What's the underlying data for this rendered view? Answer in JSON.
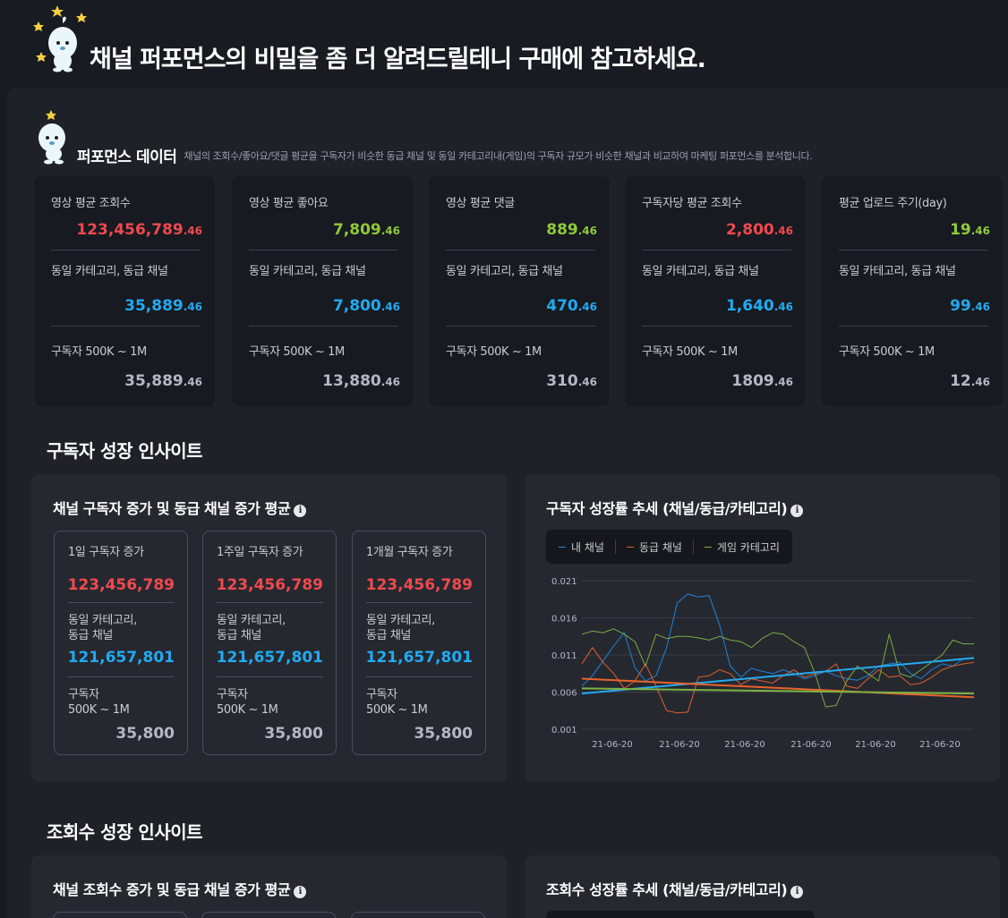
{
  "header": {
    "title": "채널 퍼포먼스의 비밀을 좀 더 알려드릴테니 구매에 참고하세요."
  },
  "performance": {
    "title": "퍼포먼스 데이터",
    "description": "채널의 조회수/좋아요/댓글 평균을 구독자가 비슷한 동급 채널 및 동일 카테고리내(게임)의 구독자 규모가 비슷한 채널과 비교하여 마케팅 퍼포먼스를 분석합니다.",
    "cards": [
      {
        "label": "영상 평균 조회수",
        "value": "123,456,789",
        "dec": ".46",
        "color": "#f0494f",
        "peer_label": "동일 카테고리, 동급 채널",
        "peer_value": "35,889",
        "peer_dec": ".46",
        "sub_label": "구독자 500K ~ 1M",
        "sub_value": "35,889",
        "sub_dec": ".46"
      },
      {
        "label": "영상 평균 좋아요",
        "value": "7,809",
        "dec": ".46",
        "color": "#8fc93a",
        "peer_label": "동일 카테고리, 동급 채널",
        "peer_value": "7,800",
        "peer_dec": ".46",
        "sub_label": "구독자 500K ~ 1M",
        "sub_value": "13,880",
        "sub_dec": ".46"
      },
      {
        "label": "영상 평균 댓글",
        "value": "889",
        "dec": ".46",
        "color": "#8fc93a",
        "peer_label": "동일 카테고리, 동급 채널",
        "peer_value": "470",
        "peer_dec": ".46",
        "sub_label": "구독자 500K ~ 1M",
        "sub_value": "310",
        "sub_dec": ".46"
      },
      {
        "label": "구독자당 평균 조회수",
        "value": "2,800",
        "dec": ".46",
        "color": "#f0494f",
        "peer_label": "동일 카테고리, 동급 채널",
        "peer_value": "1,640",
        "peer_dec": ".46",
        "sub_label": "구독자 500K ~ 1M",
        "sub_value": "1809",
        "sub_dec": ".46"
      },
      {
        "label": "평균 업로드 주기(day)",
        "value": "19",
        "dec": ".46",
        "color": "#8fc93a",
        "peer_label": "동일 카테고리, 동급 채널",
        "peer_value": "99",
        "peer_dec": ".46",
        "sub_label": "구독자 500K ~ 1M",
        "sub_value": "12",
        "sub_dec": ".46"
      }
    ]
  },
  "subscriber_section": {
    "title": "구독자 성장 인사이트",
    "box_title": "채널 구독자 증가 및 동급 채널 증가 평균",
    "chart_title": "구독자 성장률 추세 (채널/동급/카테고리)",
    "cards": [
      {
        "label": "1일 구독자 증가",
        "value": "123,456,789",
        "peer_label_1": "동일 카테고리,",
        "peer_label_2": "동급 채널",
        "peer_value": "121,657,801",
        "sub_label_1": "구독자",
        "sub_label_2": "500K ~ 1M",
        "sub_value": "35,800"
      },
      {
        "label": "1주일 구독자 증가",
        "value": "123,456,789",
        "peer_label_1": "동일 카테고리,",
        "peer_label_2": "동급 채널",
        "peer_value": "121,657,801",
        "sub_label_1": "구독자",
        "sub_label_2": "500K ~ 1M",
        "sub_value": "35,800"
      },
      {
        "label": "1개월 구독자 증가",
        "value": "123,456,789",
        "peer_label_1": "동일 카테고리,",
        "peer_label_2": "동급 채널",
        "peer_value": "121,657,801",
        "sub_label_1": "구독자",
        "sub_label_2": "500K ~ 1M",
        "sub_value": "35,800"
      }
    ]
  },
  "views_section": {
    "title": "조회수 성장 인사이트",
    "box_title": "채널 조회수 증가 및 동급 채널 증가 평균",
    "chart_title": "조회수 성장률 추세 (채널/동급/카테고리)"
  },
  "colors": {
    "accent_red": "#f0494f",
    "accent_green": "#8fc93a",
    "accent_blue": "#22aaf0",
    "series_mine": "#1e88e5",
    "series_peer": "#e8632b",
    "series_category": "#7cb342"
  },
  "chart_data": {
    "type": "line",
    "title": "구독자 성장률 추세 (채널/동급/카테고리)",
    "x_ticks": [
      "21-06-20",
      "21-06-20",
      "21-06-20",
      "21-06-20",
      "21-06-20",
      "21-06-20"
    ],
    "y_ticks": [
      "0.021",
      "0.016",
      "0.011",
      "0.006",
      "0.001"
    ],
    "ylim": [
      0.001,
      0.021
    ],
    "grid": true,
    "legend_position": "top-left",
    "series": [
      {
        "name": "내 채널",
        "color": "#1e88e5",
        "values": [
          0.0068,
          0.0082,
          0.0102,
          0.0122,
          0.014,
          0.0093,
          0.0075,
          0.0082,
          0.012,
          0.018,
          0.0192,
          0.0188,
          0.019,
          0.015,
          0.0095,
          0.008,
          0.0092,
          0.0088,
          0.0085,
          0.009,
          0.0085,
          0.0078,
          0.0082,
          0.0088,
          0.0082,
          0.0078,
          0.0076,
          0.0082,
          0.0095,
          0.0098,
          0.01,
          0.0085,
          0.0078,
          0.009,
          0.0098,
          0.0095,
          0.0105,
          0.0105
        ],
        "trend": [
          0.0058,
          0.0106
        ]
      },
      {
        "name": "동급 채널",
        "color": "#e8632b",
        "values": [
          0.0098,
          0.012,
          0.01,
          0.0085,
          0.0065,
          0.0075,
          0.0098,
          0.0068,
          0.0035,
          0.0032,
          0.0033,
          0.008,
          0.0082,
          0.009,
          0.0085,
          0.007,
          0.0078,
          0.0075,
          0.0072,
          0.0082,
          0.009,
          0.008,
          0.0085,
          0.0088,
          0.0098,
          0.0068,
          0.0065,
          0.0078,
          0.009,
          0.008,
          0.0082,
          0.007,
          0.0072,
          0.008,
          0.009,
          0.0095,
          0.0098,
          0.01
        ],
        "trend": [
          0.0078,
          0.0053
        ]
      },
      {
        "name": "게임 카테고리",
        "color": "#7cb342",
        "values": [
          0.0138,
          0.0142,
          0.014,
          0.0145,
          0.0138,
          0.0128,
          0.0095,
          0.0138,
          0.0132,
          0.0135,
          0.0135,
          0.0133,
          0.013,
          0.0135,
          0.013,
          0.0128,
          0.012,
          0.0132,
          0.014,
          0.0138,
          0.0128,
          0.012,
          0.0085,
          0.004,
          0.0042,
          0.0075,
          0.0095,
          0.0085,
          0.0075,
          0.0138,
          0.0085,
          0.008,
          0.009,
          0.01,
          0.011,
          0.013,
          0.0125,
          0.0125
        ],
        "trend": [
          0.0065,
          0.0058
        ]
      }
    ]
  }
}
